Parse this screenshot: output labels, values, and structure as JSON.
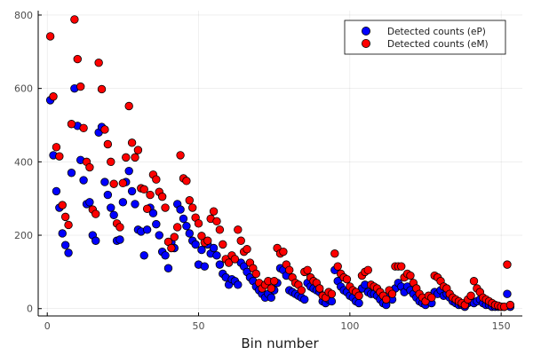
{
  "chart_data": {
    "type": "scatter",
    "title": "",
    "xlabel": "Bin number",
    "ylabel": "",
    "xlim": [
      -3,
      157
    ],
    "ylim": [
      -20,
      812
    ],
    "xticks": [
      0,
      50,
      100,
      150
    ],
    "yticks": [
      0,
      200,
      400,
      600,
      800
    ],
    "xtick_labels": [
      "0",
      "50",
      "100",
      "150"
    ],
    "ytick_labels": [
      "0",
      "200",
      "400",
      "600",
      "800"
    ],
    "grid": true,
    "legend_position": "top-right",
    "series": [
      {
        "name": "Detected counts (eP)",
        "color": "#0000ff",
        "x": [
          1,
          2,
          3,
          4,
          5,
          6,
          7,
          8,
          9,
          10,
          11,
          12,
          13,
          14,
          15,
          16,
          17,
          18,
          19,
          20,
          21,
          22,
          23,
          24,
          25,
          26,
          27,
          28,
          29,
          30,
          31,
          32,
          33,
          34,
          35,
          36,
          37,
          38,
          39,
          40,
          41,
          42,
          43,
          44,
          45,
          46,
          47,
          48,
          49,
          50,
          51,
          52,
          53,
          54,
          55,
          56,
          57,
          58,
          59,
          60,
          61,
          62,
          63,
          64,
          65,
          66,
          67,
          68,
          69,
          70,
          71,
          72,
          73,
          74,
          75,
          76,
          77,
          78,
          79,
          80,
          81,
          82,
          83,
          84,
          85,
          86,
          87,
          88,
          89,
          90,
          91,
          92,
          93,
          94,
          95,
          96,
          97,
          98,
          99,
          100,
          101,
          102,
          103,
          104,
          105,
          106,
          107,
          108,
          109,
          110,
          111,
          112,
          113,
          114,
          115,
          116,
          117,
          118,
          119,
          120,
          121,
          122,
          123,
          124,
          125,
          126,
          127,
          128,
          129,
          130,
          131,
          132,
          133,
          134,
          135,
          136,
          137,
          138,
          139,
          140,
          141,
          142,
          143,
          144,
          145,
          146,
          147,
          148,
          149,
          150,
          151,
          152,
          153
        ],
        "y": [
          568,
          418,
          320,
          275,
          205,
          173,
          152,
          370,
          600,
          498,
          405,
          350,
          285,
          290,
          200,
          185,
          480,
          495,
          345,
          310,
          275,
          255,
          185,
          188,
          290,
          345,
          375,
          320,
          285,
          215,
          210,
          145,
          215,
          275,
          260,
          230,
          200,
          155,
          145,
          110,
          180,
          165,
          285,
          270,
          245,
          225,
          205,
          185,
          175,
          120,
          160,
          115,
          175,
          150,
          165,
          145,
          120,
          95,
          85,
          65,
          80,
          75,
          65,
          125,
          115,
          100,
          85,
          75,
          60,
          50,
          40,
          30,
          40,
          30,
          50,
          70,
          110,
          105,
          90,
          50,
          45,
          40,
          35,
          30,
          25,
          70,
          60,
          55,
          50,
          45,
          20,
          15,
          25,
          20,
          105,
          75,
          60,
          50,
          45,
          35,
          30,
          20,
          15,
          55,
          65,
          45,
          40,
          40,
          35,
          25,
          15,
          10,
          30,
          25,
          55,
          70,
          60,
          45,
          60,
          50,
          40,
          30,
          20,
          15,
          10,
          20,
          15,
          45,
          40,
          50,
          35,
          40,
          30,
          20,
          15,
          10,
          10,
          5,
          15,
          20,
          15,
          20,
          25,
          15,
          10,
          10,
          5,
          5,
          5,
          5,
          5,
          40,
          5
        ]
      },
      {
        "name": "Detected counts (eM)",
        "color": "#ff0000",
        "x": [
          1,
          2,
          3,
          4,
          5,
          6,
          7,
          8,
          9,
          10,
          11,
          12,
          13,
          14,
          15,
          16,
          17,
          18,
          19,
          20,
          21,
          22,
          23,
          24,
          25,
          26,
          27,
          28,
          29,
          30,
          31,
          32,
          33,
          34,
          35,
          36,
          37,
          38,
          39,
          40,
          41,
          42,
          43,
          44,
          45,
          46,
          47,
          48,
          49,
          50,
          51,
          52,
          53,
          54,
          55,
          56,
          57,
          58,
          59,
          60,
          61,
          62,
          63,
          64,
          65,
          66,
          67,
          68,
          69,
          70,
          71,
          72,
          73,
          74,
          75,
          76,
          77,
          78,
          79,
          80,
          81,
          82,
          83,
          84,
          85,
          86,
          87,
          88,
          89,
          90,
          91,
          92,
          93,
          94,
          95,
          96,
          97,
          98,
          99,
          100,
          101,
          102,
          103,
          104,
          105,
          106,
          107,
          108,
          109,
          110,
          111,
          112,
          113,
          114,
          115,
          116,
          117,
          118,
          119,
          120,
          121,
          122,
          123,
          124,
          125,
          126,
          127,
          128,
          129,
          130,
          131,
          132,
          133,
          134,
          135,
          136,
          137,
          138,
          139,
          140,
          141,
          142,
          143,
          144,
          145,
          146,
          147,
          148,
          149,
          150,
          151,
          152,
          153
        ],
        "y": [
          742,
          578,
          440,
          415,
          282,
          250,
          228,
          503,
          788,
          680,
          605,
          492,
          400,
          385,
          270,
          258,
          670,
          598,
          488,
          448,
          400,
          340,
          232,
          222,
          342,
          412,
          552,
          452,
          412,
          432,
          328,
          325,
          272,
          310,
          365,
          352,
          318,
          305,
          275,
          182,
          165,
          195,
          222,
          418,
          355,
          348,
          295,
          275,
          248,
          232,
          198,
          180,
          185,
          245,
          265,
          238,
          215,
          175,
          135,
          125,
          145,
          135,
          215,
          185,
          155,
          162,
          125,
          110,
          95,
          70,
          55,
          65,
          75,
          55,
          75,
          165,
          150,
          155,
          120,
          105,
          85,
          70,
          65,
          50,
          100,
          105,
          85,
          75,
          70,
          55,
          35,
          30,
          45,
          40,
          150,
          115,
          95,
          85,
          80,
          60,
          50,
          45,
          35,
          90,
          100,
          105,
          65,
          60,
          55,
          45,
          35,
          25,
          50,
          40,
          115,
          115,
          115,
          85,
          95,
          90,
          70,
          55,
          40,
          30,
          20,
          35,
          30,
          90,
          85,
          75,
          60,
          55,
          40,
          30,
          25,
          20,
          15,
          10,
          25,
          35,
          75,
          55,
          45,
          30,
          25,
          20,
          15,
          10,
          8,
          5,
          5,
          120,
          10
        ]
      }
    ]
  }
}
